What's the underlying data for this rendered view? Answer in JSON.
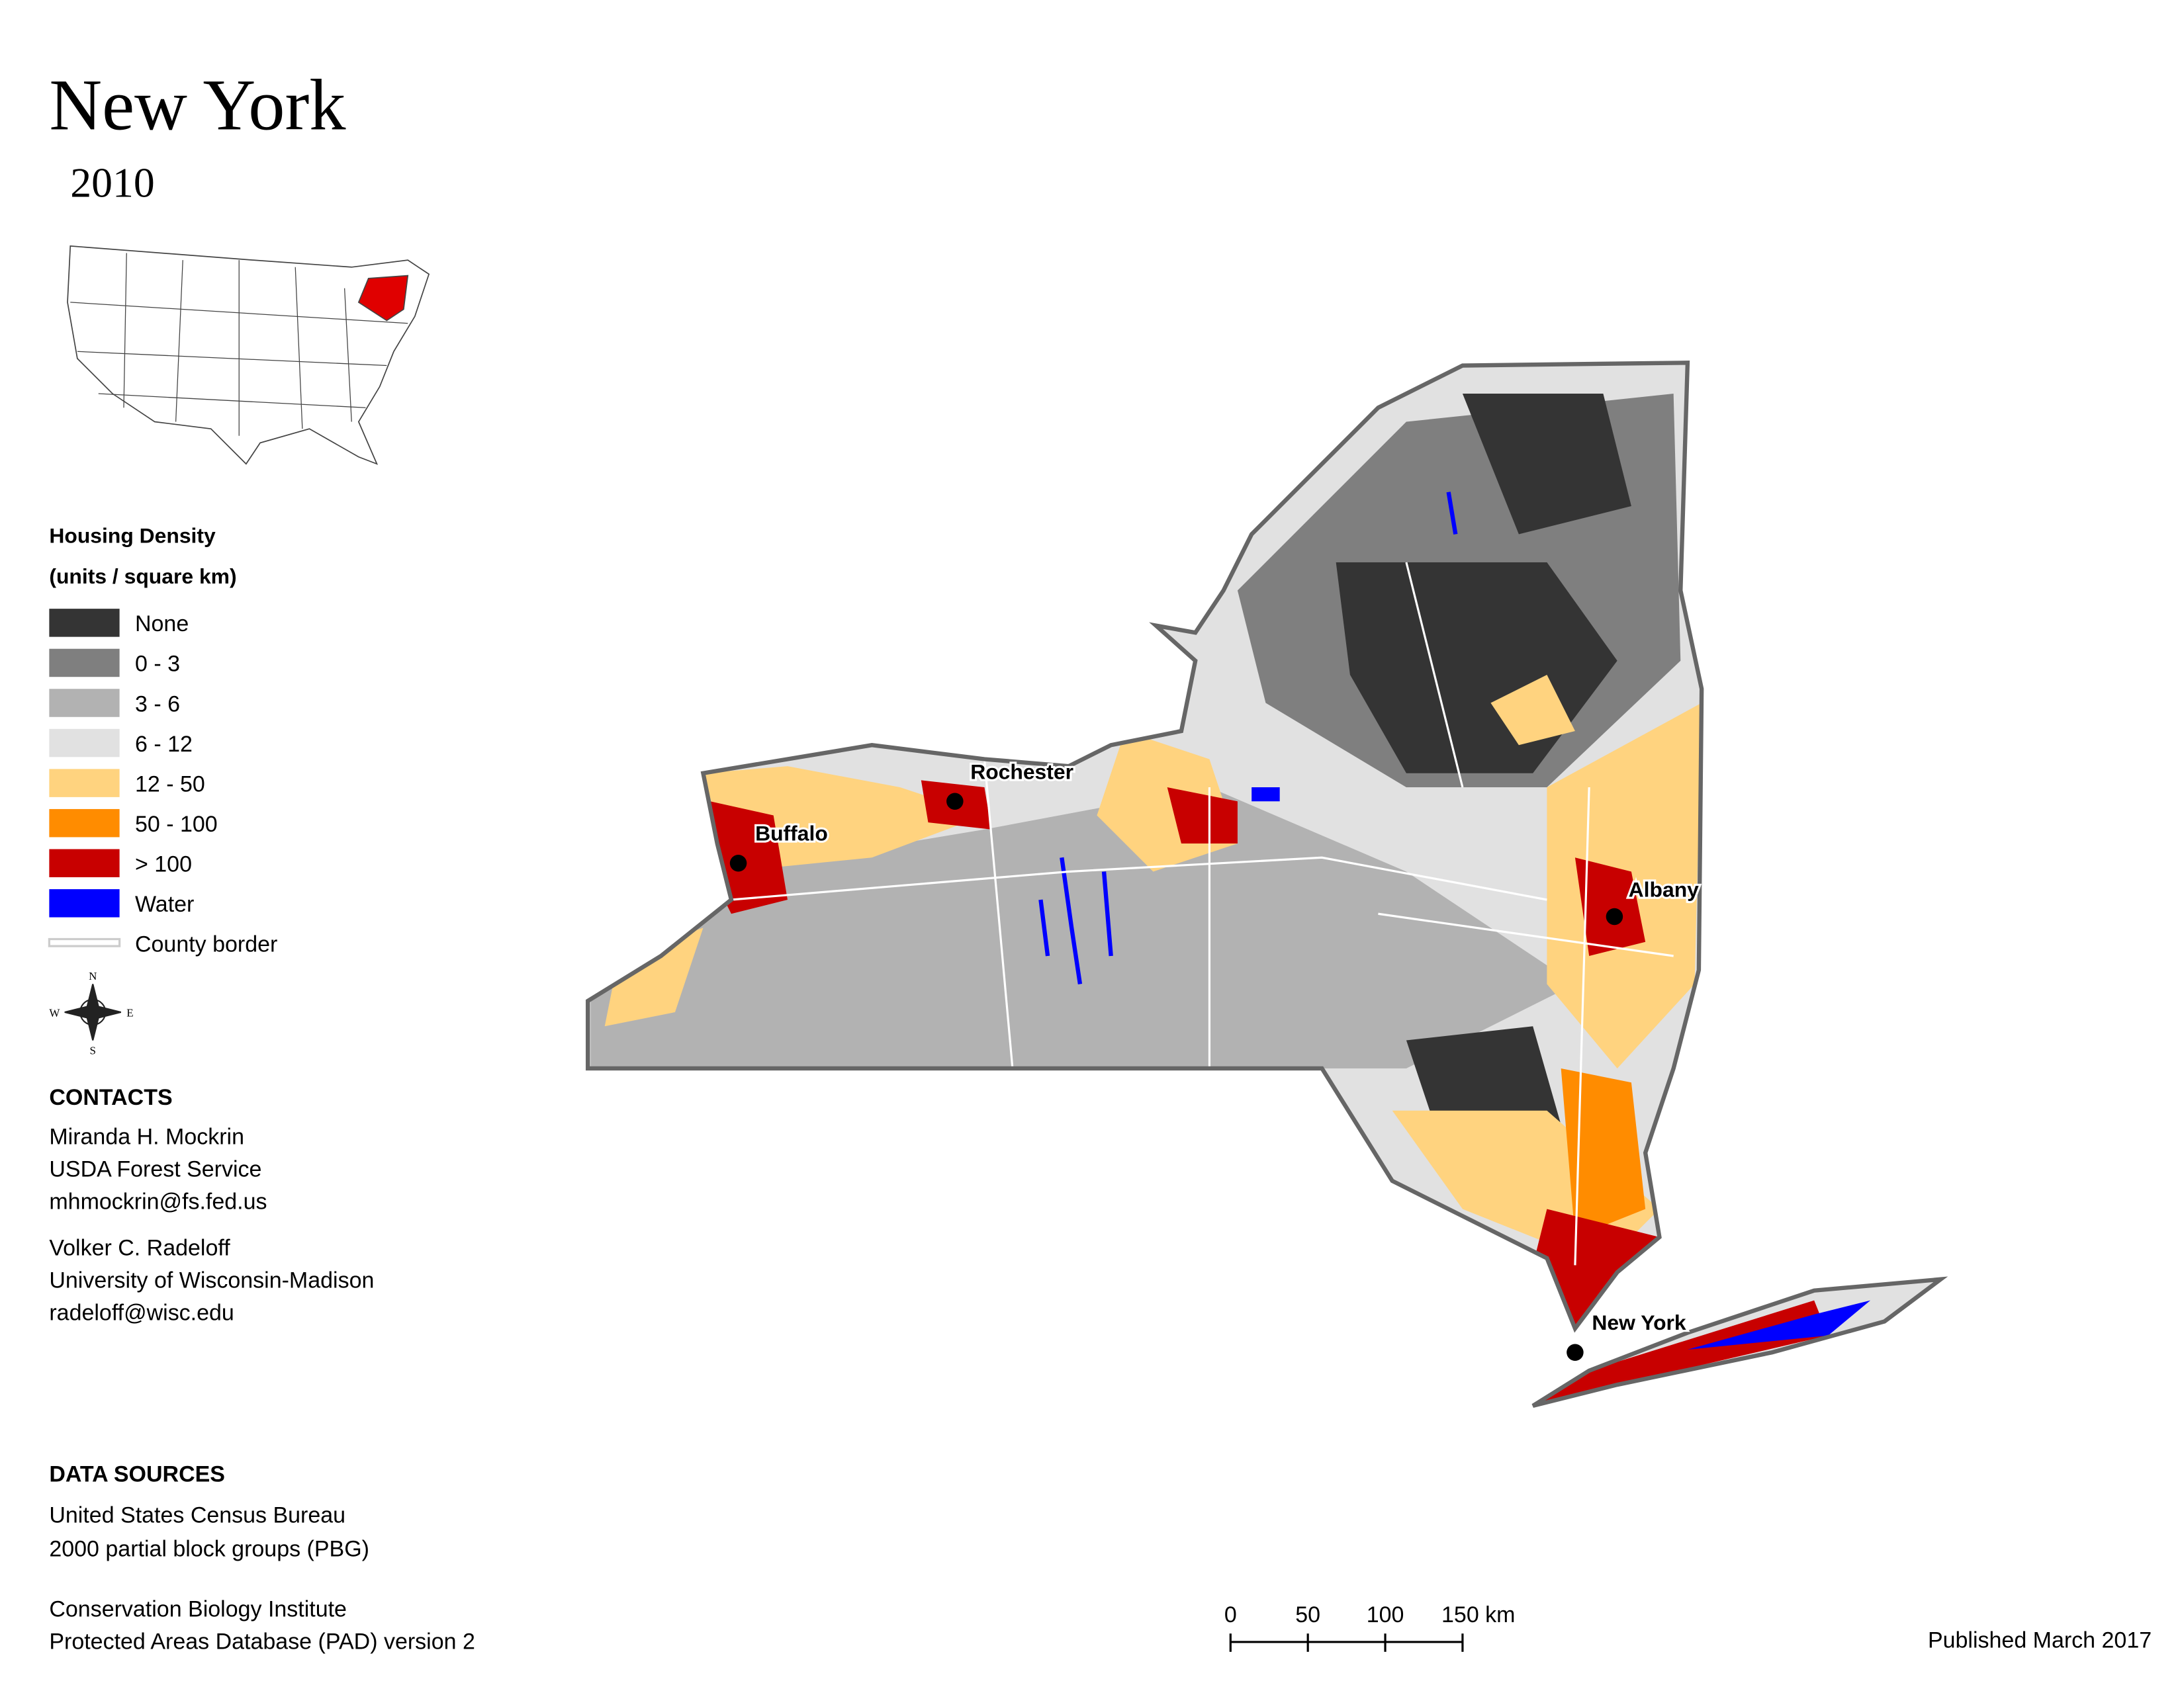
{
  "header": {
    "title": "New York",
    "subtitle": "2010"
  },
  "legend": {
    "title": "Housing Density",
    "subtitle": "(units / square km)",
    "items": [
      {
        "label": "None",
        "color": "#343434"
      },
      {
        "label": "0 - 3",
        "color": "#7f7f7f"
      },
      {
        "label": "3 - 6",
        "color": "#b2b2b2"
      },
      {
        "label": "6 - 12",
        "color": "#e1e1e1"
      },
      {
        "label": "12 - 50",
        "color": "#ffd37f"
      },
      {
        "label": "50 - 100",
        "color": "#ff8c00"
      },
      {
        "label": "> 100",
        "color": "#c80000"
      },
      {
        "label": "Water",
        "color": "#0000ff"
      },
      {
        "label": "County border",
        "color": "#cccccc"
      }
    ]
  },
  "compass": {
    "n": "N",
    "s": "S",
    "e": "E",
    "w": "W"
  },
  "cities": [
    {
      "name": "Rochester"
    },
    {
      "name": "Buffalo"
    },
    {
      "name": "Albany"
    },
    {
      "name": "New York"
    }
  ],
  "contacts": {
    "title": "CONTACTS",
    "people": [
      {
        "name": "Miranda H. Mockrin",
        "org": "USDA Forest Service",
        "email": "mhmockrin@fs.fed.us"
      },
      {
        "name": "Volker C. Radeloff",
        "org": "University of Wisconsin-Madison",
        "email": "radeloff@wisc.edu"
      }
    ]
  },
  "sources": {
    "title": "DATA SOURCES",
    "items": [
      [
        "United States Census Bureau",
        "2000 partial block groups (PBG)"
      ],
      [
        "Conservation Biology Institute",
        "Protected Areas Database (PAD) version 2"
      ]
    ]
  },
  "scale_bar": {
    "labels": [
      "0",
      "50",
      "100",
      "150 km"
    ]
  },
  "published": "Published March 2017"
}
